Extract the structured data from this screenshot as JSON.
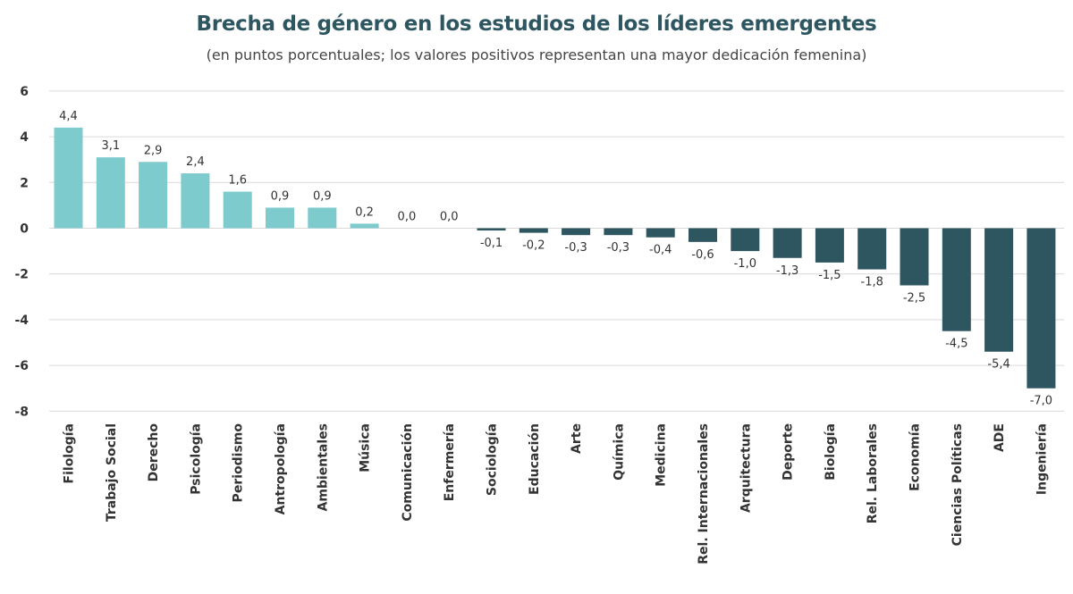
{
  "title": "Brecha de género en los estudios de los líderes emergentes",
  "subtitle": "(en puntos porcentuales; los valores positivos representan una mayor dedicación femenina)",
  "chart_data": {
    "type": "bar",
    "title": "Brecha de género en los estudios de los líderes emergentes",
    "subtitle": "(en puntos porcentuales; los valores positivos representan una mayor dedicación femenina)",
    "xlabel": "",
    "ylabel": "",
    "ylim": [
      -8,
      6
    ],
    "yticks": [
      6,
      4,
      2,
      0,
      -2,
      -4,
      -6,
      -8
    ],
    "grid": true,
    "legend": "none",
    "colors": {
      "positive": "#7ecbcd",
      "negative": "#2d5661"
    },
    "categories": [
      "Filología",
      "Trabajo Social",
      "Derecho",
      "Psicología",
      "Periodismo",
      "Antropología",
      "Ambientales",
      "Música",
      "Comunicación",
      "Enfermería",
      "Sociología",
      "Educación",
      "Arte",
      "Química",
      "Medicina",
      "Rel. Internacionales",
      "Arquitectura",
      "Deporte",
      "Biología",
      "Rel. Laborales",
      "Economía",
      "Ciencias Políticas",
      "ADE",
      "Ingeniería"
    ],
    "values": [
      4.4,
      3.1,
      2.9,
      2.4,
      1.6,
      0.9,
      0.9,
      0.2,
      0.0,
      0.0,
      -0.1,
      -0.2,
      -0.3,
      -0.3,
      -0.4,
      -0.6,
      -1.0,
      -1.3,
      -1.5,
      -1.8,
      -2.5,
      -4.5,
      -5.4,
      -7.0
    ],
    "value_labels": [
      "4,4",
      "3,1",
      "2,9",
      "2,4",
      "1,6",
      "0,9",
      "0,9",
      "0,2",
      "0,0",
      "0,0",
      "-0,1",
      "-0,2",
      "-0,3",
      "-0,3",
      "-0,4",
      "-0,6",
      "-1,0",
      "-1,3",
      "-1,5",
      "-1,8",
      "-2,5",
      "-4,5",
      "-5,4",
      "-7,0"
    ]
  }
}
